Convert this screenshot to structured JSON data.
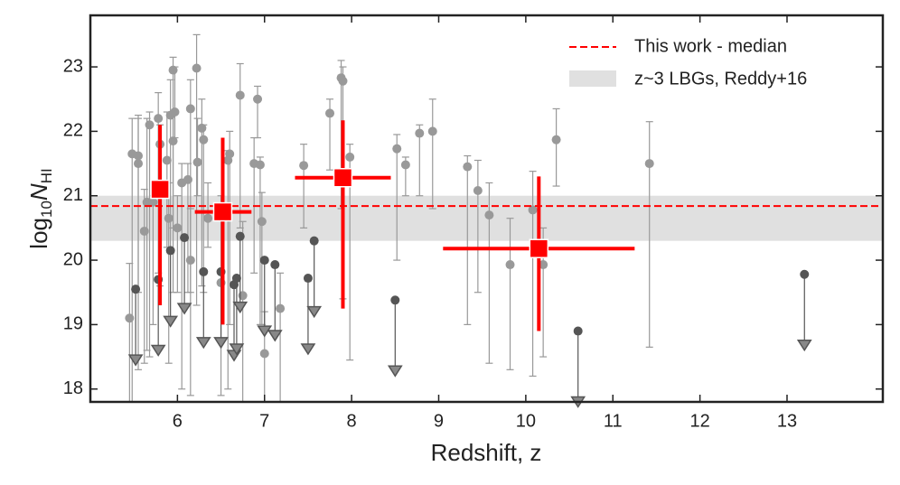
{
  "chart_data": {
    "type": "scatter",
    "xlabel": "Redshift, z",
    "ylabel": {
      "text": "log",
      "sub": "10",
      "var": "N",
      "var_sub": "HI"
    },
    "xlim": [
      5.0,
      14.1
    ],
    "ylim": [
      17.8,
      23.8
    ],
    "xticks": [
      6,
      7,
      8,
      9,
      10,
      11,
      12,
      13
    ],
    "yticks": [
      18,
      19,
      20,
      21,
      22,
      23
    ],
    "legend": "upper right",
    "median": {
      "name": "This work - median",
      "value": 20.84,
      "color": "#ff0000"
    },
    "band": {
      "name": "z~3 LBGs, Reddy+16",
      "range": [
        20.3,
        21.0
      ],
      "color": "#e0e0e0"
    },
    "detections": {
      "color": "#999999",
      "x": [
        5.45,
        5.48,
        5.55,
        5.55,
        5.62,
        5.65,
        5.68,
        5.72,
        5.78,
        5.8,
        5.88,
        5.9,
        5.92,
        5.95,
        5.95,
        5.97,
        6.0,
        6.05,
        6.12,
        6.15,
        6.15,
        6.22,
        6.23,
        6.28,
        6.3,
        6.35,
        6.5,
        6.58,
        6.6,
        6.72,
        6.75,
        6.88,
        6.92,
        6.95,
        6.97,
        7.0,
        7.18,
        7.45,
        7.75,
        7.88,
        7.9,
        7.98,
        8.52,
        8.62,
        8.78,
        8.93,
        9.33,
        9.45,
        9.58,
        9.82,
        10.08,
        10.2,
        10.35,
        11.42
      ],
      "y": [
        19.1,
        21.65,
        21.5,
        21.62,
        20.45,
        20.9,
        22.1,
        20.9,
        22.2,
        21.8,
        21.55,
        20.65,
        22.25,
        22.95,
        21.85,
        22.3,
        20.5,
        21.2,
        21.25,
        22.35,
        20.0,
        22.98,
        21.52,
        22.05,
        21.87,
        20.65,
        19.65,
        21.55,
        21.65,
        22.56,
        19.45,
        21.5,
        22.5,
        21.48,
        20.6,
        18.55,
        19.25,
        21.47,
        22.28,
        22.83,
        22.78,
        21.6,
        21.73,
        21.48,
        21.97,
        22.0,
        21.45,
        21.08,
        20.7,
        19.93,
        20.78,
        19.93,
        21.87,
        21.5
      ],
      "y_low": [
        17.8,
        17.8,
        19.5,
        18.3,
        18.4,
        18.6,
        18.5,
        19.0,
        19.8,
        19.6,
        20.2,
        18.4,
        20.1,
        19.5,
        20.5,
        21.9,
        19.5,
        18.0,
        19.5,
        19.5,
        17.9,
        19.3,
        21.0,
        19.6,
        19.5,
        20.2,
        17.9,
        18.0,
        19.0,
        20.5,
        17.8,
        19.8,
        21.9,
        19.0,
        19.0,
        17.8,
        17.8,
        20.5,
        21.4,
        20.8,
        19.4,
        18.45,
        20.0,
        21.0,
        21.0,
        20.8,
        19.0,
        19.5,
        18.4,
        18.3,
        18.2,
        18.5,
        21.15,
        18.65
      ],
      "y_high": [
        19.95,
        22.2,
        22.2,
        22.25,
        21.1,
        22.2,
        22.3,
        21.0,
        22.6,
        22.1,
        22.3,
        21.2,
        22.8,
        23.15,
        22.3,
        23.0,
        21.0,
        21.5,
        21.5,
        22.8,
        20.8,
        23.5,
        22.2,
        22.5,
        22.1,
        21.2,
        21.0,
        21.7,
        22.0,
        23.05,
        20.6,
        21.9,
        22.7,
        21.6,
        21.05,
        19.2,
        19.8,
        21.8,
        22.5,
        23.1,
        23.0,
        21.8,
        21.95,
        21.6,
        22.1,
        22.5,
        21.62,
        21.55,
        21.2,
        20.65,
        21.38,
        20.5,
        22.35,
        22.15
      ]
    },
    "limits": {
      "color": "#555555",
      "x": [
        5.52,
        5.78,
        5.92,
        6.08,
        6.3,
        6.5,
        6.65,
        6.68,
        6.72,
        7.0,
        7.12,
        7.5,
        7.57,
        8.5,
        10.6,
        13.2
      ],
      "y": [
        19.55,
        19.7,
        20.15,
        20.35,
        19.82,
        19.82,
        19.62,
        19.72,
        20.37,
        20.0,
        19.93,
        19.72,
        20.3,
        19.38,
        18.9,
        19.78
      ]
    },
    "this_work": {
      "color": "#ff0000",
      "x": [
        5.8,
        6.52,
        7.9,
        10.15
      ],
      "y": [
        21.1,
        20.75,
        21.28,
        20.18
      ],
      "x_low": [
        5.75,
        6.2,
        7.35,
        9.05
      ],
      "x_high": [
        5.88,
        6.85,
        8.45,
        11.25
      ],
      "y_low": [
        19.3,
        19.0,
        19.25,
        18.9
      ],
      "y_high": [
        22.1,
        21.9,
        22.17,
        21.3
      ]
    }
  }
}
